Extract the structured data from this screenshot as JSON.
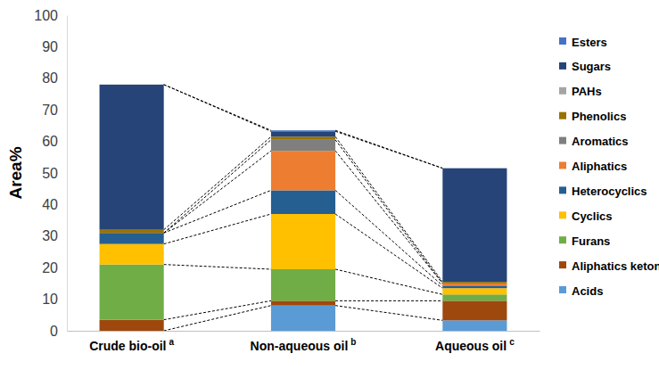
{
  "chart_data": {
    "type": "bar",
    "stacked": true,
    "y_label": "Area%",
    "categories": [
      "Crude bio-oil",
      "Non-aqueous oil",
      "Aqueous oil"
    ],
    "category_superscripts": [
      "a",
      "b",
      "c"
    ],
    "ylim": [
      0,
      100
    ],
    "yticks": [
      0,
      10,
      20,
      30,
      40,
      50,
      60,
      70,
      80,
      90,
      100
    ],
    "legend": "right",
    "series": [
      {
        "name": "Acids",
        "color": "#5b9bd5",
        "values": [
          0,
          8,
          3.3
        ]
      },
      {
        "name": "Aliphatics ketones",
        "color": "#9e480e",
        "values": [
          3.5,
          1.5,
          6.2
        ]
      },
      {
        "name": "Furans",
        "color": "#70ad47",
        "values": [
          17.5,
          10,
          2
        ]
      },
      {
        "name": "Cyclics",
        "color": "#ffc000",
        "values": [
          6.5,
          17.5,
          2
        ]
      },
      {
        "name": "Heterocyclics",
        "color": "#255e91",
        "values": [
          3.5,
          7.5,
          0.8
        ]
      },
      {
        "name": "Aliphatics",
        "color": "#ed7d31",
        "values": [
          0,
          12.5,
          0.7
        ]
      },
      {
        "name": "Aromatics",
        "color": "#7f7f7f",
        "values": [
          0,
          3.5,
          0
        ]
      },
      {
        "name": "Phenolics",
        "color": "#997300",
        "values": [
          1,
          1,
          0.5
        ]
      },
      {
        "name": "PAHs",
        "color": "#a5a5a5",
        "values": [
          0,
          0,
          0
        ]
      },
      {
        "name": "Sugars",
        "color": "#264478",
        "values": [
          46,
          1.7,
          36
        ]
      },
      {
        "name": "Esters",
        "color": "#4472c4",
        "values": [
          0,
          0.3,
          0
        ]
      }
    ]
  }
}
